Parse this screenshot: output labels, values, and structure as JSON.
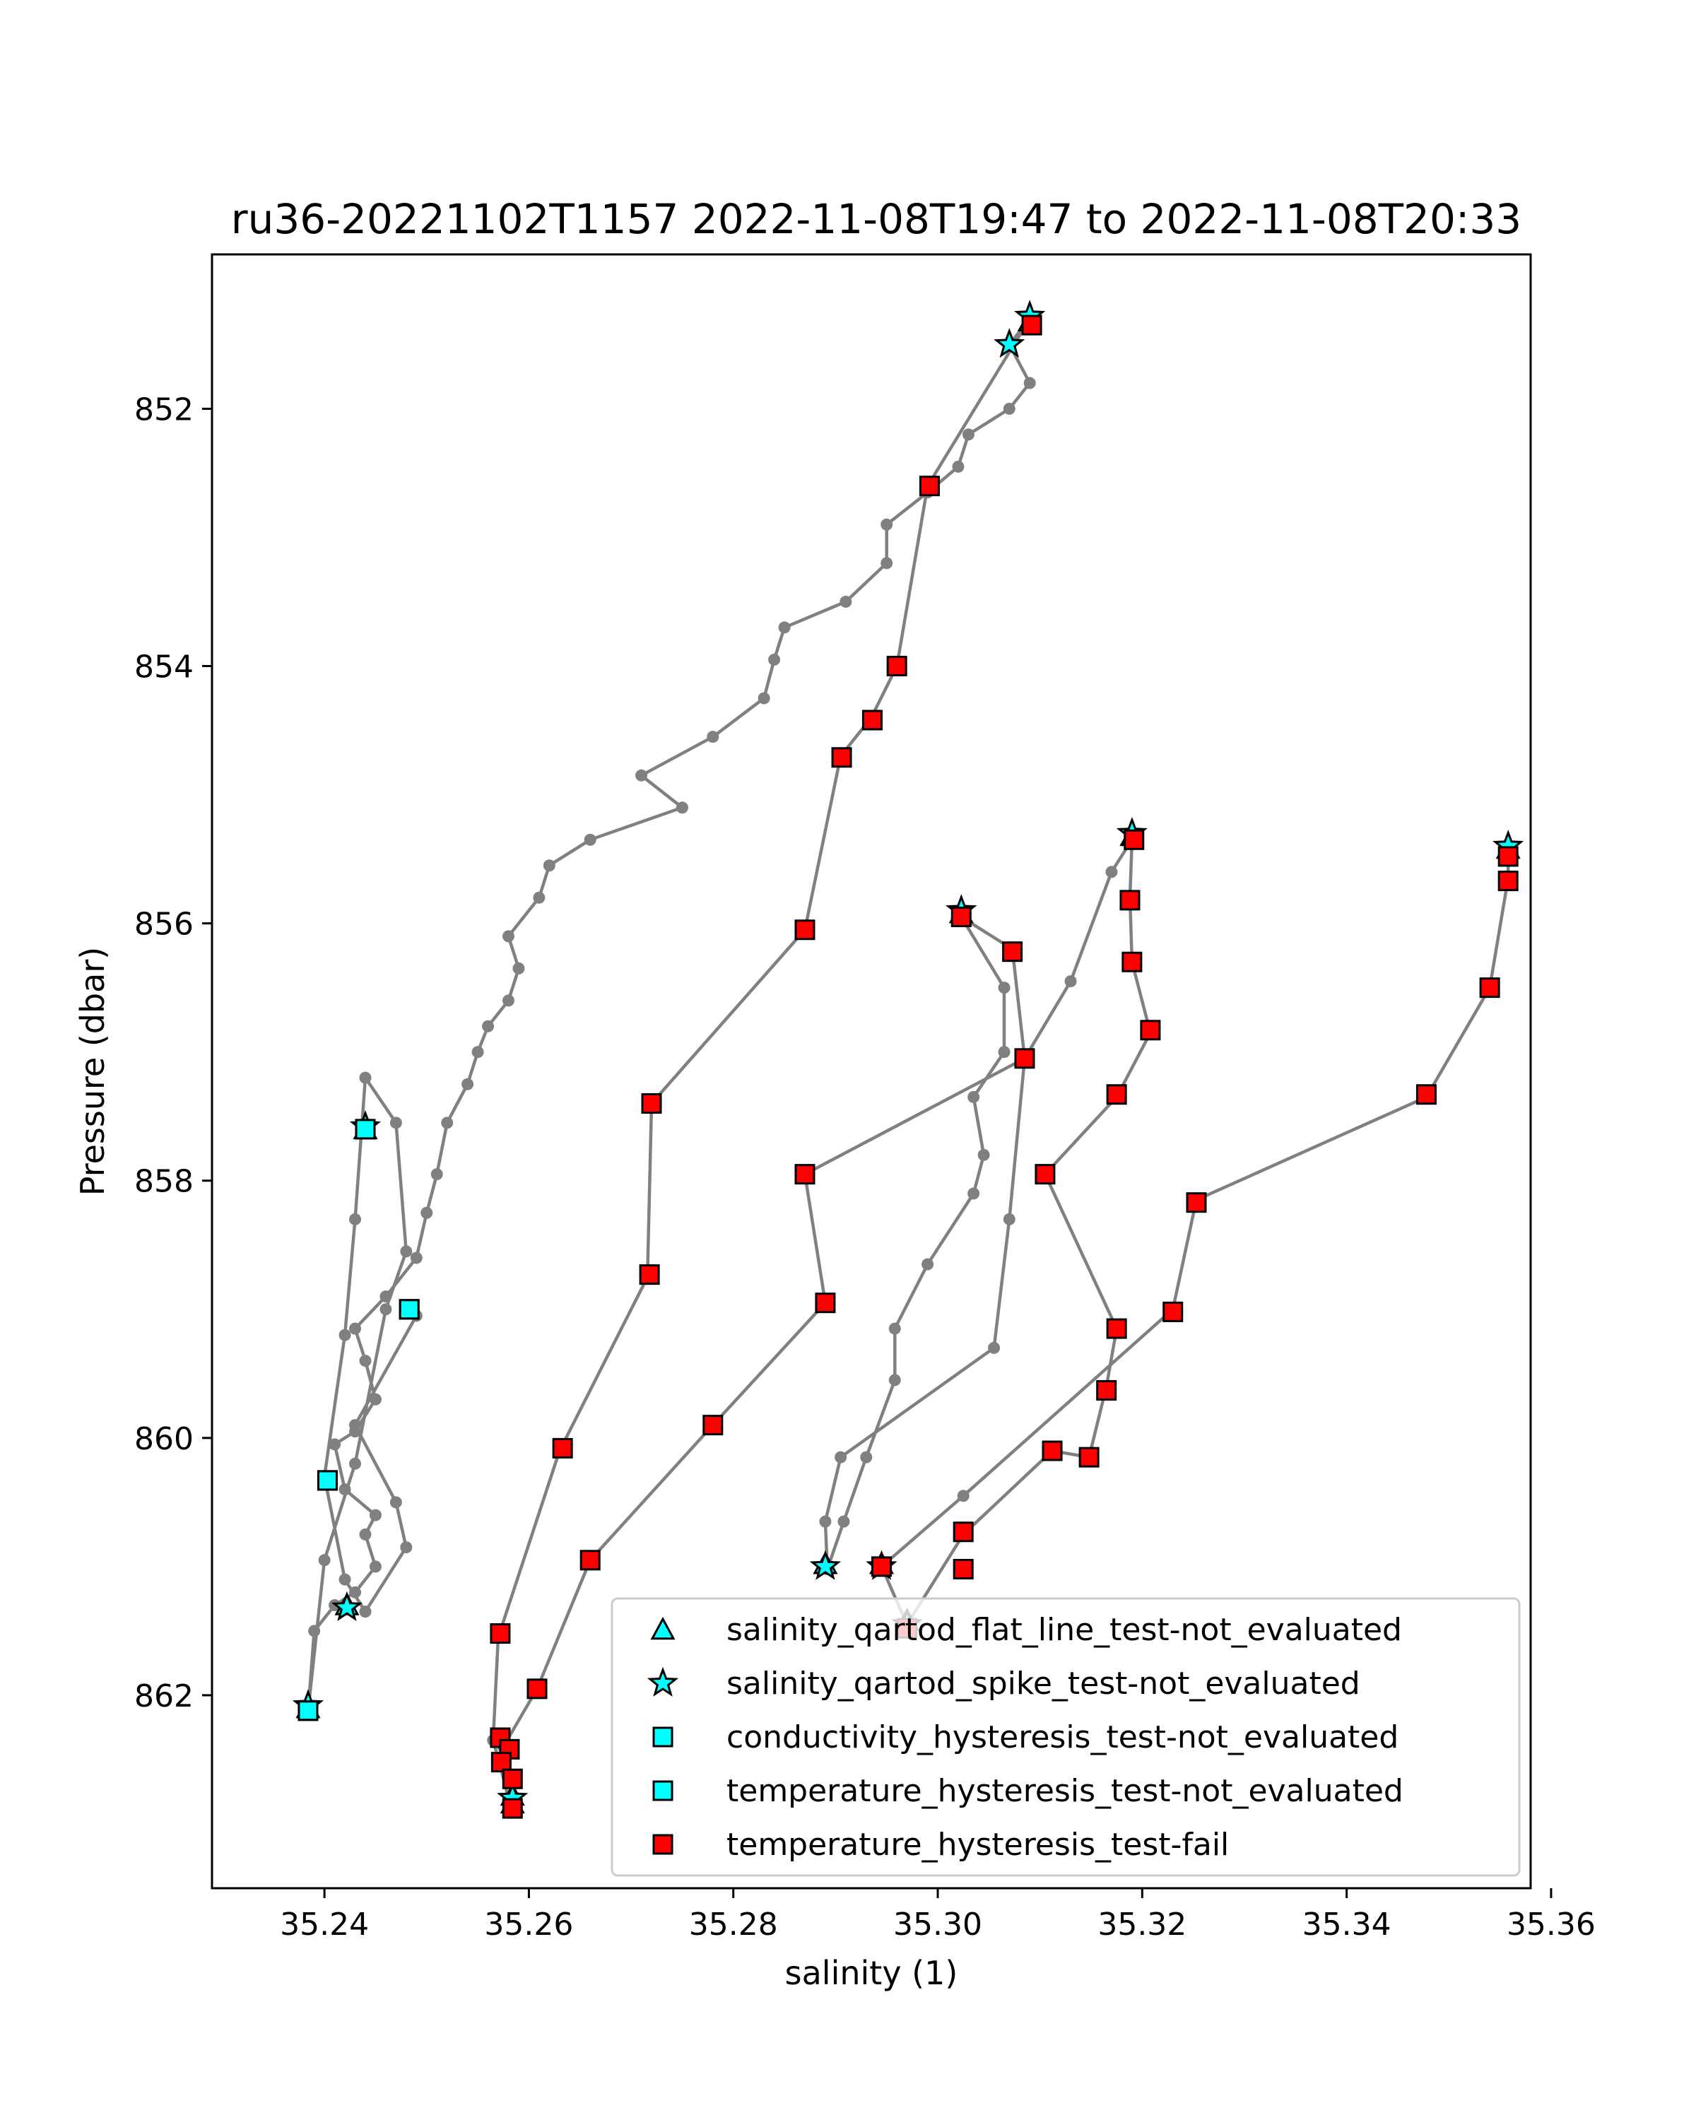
{
  "chart_data": {
    "type": "scatter",
    "title": "ru36-20221102T1157 2022-11-08T19:47 to 2022-11-08T20:33",
    "xlabel": "salinity (1)",
    "ylabel": "Pressure (dbar)",
    "xlim": [
      35.229,
      35.358
    ],
    "ylim": [
      863.5,
      850.8
    ],
    "y_inverted": true,
    "xticks": [
      35.24,
      35.26,
      35.28,
      35.3,
      35.32,
      35.34,
      35.36
    ],
    "xtick_labels": [
      "35.24",
      "35.26",
      "35.28",
      "35.30",
      "35.32",
      "35.34",
      "35.36"
    ],
    "yticks": [
      852,
      854,
      856,
      858,
      860,
      862
    ],
    "ytick_labels": [
      "852",
      "854",
      "856",
      "858",
      "860",
      "862"
    ],
    "grid": false,
    "legend_position": "lower-right",
    "colors": {
      "profile_line": "#808080",
      "not_evaluated": "#00ffff",
      "fail": "#ff0000",
      "marker_edge": "#000000"
    },
    "profiles": [
      {
        "points": [
          [
            35.309,
            851.3
          ],
          [
            35.307,
            851.5
          ],
          [
            35.309,
            851.8
          ],
          [
            35.307,
            852.0
          ],
          [
            35.303,
            852.2
          ],
          [
            35.302,
            852.45
          ],
          [
            35.299,
            852.65
          ],
          [
            35.295,
            852.9
          ],
          [
            35.295,
            853.2
          ],
          [
            35.291,
            853.5
          ],
          [
            35.285,
            853.7
          ],
          [
            35.284,
            853.95
          ],
          [
            35.283,
            854.25
          ],
          [
            35.278,
            854.55
          ],
          [
            35.271,
            854.85
          ],
          [
            35.275,
            855.1
          ],
          [
            35.266,
            855.35
          ],
          [
            35.262,
            855.55
          ],
          [
            35.261,
            855.8
          ],
          [
            35.258,
            856.1
          ],
          [
            35.259,
            856.35
          ],
          [
            35.258,
            856.6
          ],
          [
            35.256,
            856.8
          ],
          [
            35.255,
            857.0
          ],
          [
            35.254,
            857.25
          ],
          [
            35.252,
            857.55
          ],
          [
            35.251,
            857.95
          ],
          [
            35.25,
            858.25
          ],
          [
            35.249,
            858.6
          ],
          [
            35.246,
            858.9
          ],
          [
            35.243,
            859.15
          ],
          [
            35.244,
            859.4
          ],
          [
            35.245,
            859.7
          ],
          [
            35.243,
            859.95
          ],
          [
            35.241,
            860.05
          ],
          [
            35.242,
            860.4
          ],
          [
            35.245,
            860.6
          ],
          [
            35.244,
            860.75
          ],
          [
            35.245,
            861.0
          ],
          [
            35.243,
            861.2
          ],
          [
            35.241,
            861.3
          ],
          [
            35.239,
            861.5
          ],
          [
            35.2384,
            862.12
          ]
        ]
      },
      {
        "points": [
          [
            35.2384,
            862.12
          ],
          [
            35.24,
            860.95
          ],
          [
            35.243,
            860.2
          ],
          [
            35.246,
            859.0
          ],
          [
            35.248,
            858.55
          ],
          [
            35.247,
            857.55
          ],
          [
            35.244,
            857.2
          ],
          [
            35.243,
            858.3
          ],
          [
            35.242,
            859.2
          ],
          [
            35.24,
            860.3
          ],
          [
            35.242,
            861.1
          ],
          [
            35.244,
            861.35
          ],
          [
            35.248,
            860.85
          ],
          [
            35.247,
            860.5
          ],
          [
            35.243,
            859.9
          ],
          [
            35.249,
            859.05
          ]
        ]
      },
      {
        "points": [
          [
            35.309,
            851.3
          ],
          [
            35.299,
            852.6
          ],
          [
            35.296,
            854.0
          ],
          [
            35.2935,
            854.4
          ],
          [
            35.2905,
            854.7
          ],
          [
            35.287,
            856.05
          ],
          [
            35.272,
            857.4
          ],
          [
            35.2716,
            858.75
          ],
          [
            35.263,
            860.1
          ],
          [
            35.257,
            861.55
          ],
          [
            35.2565,
            862.35
          ],
          [
            35.2572,
            862.55
          ],
          [
            35.258,
            862.8
          ],
          [
            35.2583,
            862.88
          ],
          [
            35.2585,
            862.82
          ],
          [
            35.258,
            862.65
          ],
          [
            35.2575,
            862.4
          ],
          [
            35.2608,
            861.95
          ],
          [
            35.266,
            860.95
          ],
          [
            35.278,
            859.9
          ],
          [
            35.289,
            858.95
          ],
          [
            35.287,
            857.95
          ],
          [
            35.3085,
            857.05
          ],
          [
            35.313,
            856.45
          ],
          [
            35.317,
            855.6
          ],
          [
            35.319,
            855.35
          ],
          [
            35.3188,
            855.8
          ],
          [
            35.319,
            856.3
          ],
          [
            35.3208,
            856.85
          ],
          [
            35.3175,
            857.35
          ],
          [
            35.3105,
            857.95
          ],
          [
            35.3175,
            859.15
          ],
          [
            35.3165,
            859.6
          ],
          [
            35.3148,
            860.15
          ],
          [
            35.3112,
            860.1
          ],
          [
            35.3025,
            860.75
          ],
          [
            35.297,
            861.45
          ],
          [
            35.2945,
            861.0
          ],
          [
            35.3025,
            860.45
          ],
          [
            35.323,
            859.0
          ],
          [
            35.3253,
            858.15
          ],
          [
            35.3478,
            857.35
          ],
          [
            35.354,
            856.5
          ],
          [
            35.3558,
            855.65
          ],
          [
            35.3558,
            855.45
          ]
        ]
      },
      {
        "points": [
          [
            35.3023,
            855.95
          ],
          [
            35.3073,
            856.2
          ],
          [
            35.3085,
            857.05
          ],
          [
            35.307,
            858.3
          ],
          [
            35.3055,
            859.3
          ],
          [
            35.2905,
            860.15
          ],
          [
            35.289,
            860.65
          ],
          [
            35.2892,
            861.02
          ],
          [
            35.2908,
            860.65
          ],
          [
            35.293,
            860.15
          ],
          [
            35.2958,
            859.55
          ],
          [
            35.2958,
            859.15
          ],
          [
            35.299,
            858.65
          ],
          [
            35.3035,
            858.1
          ],
          [
            35.3045,
            857.8
          ],
          [
            35.3035,
            857.35
          ],
          [
            35.3065,
            857.0
          ],
          [
            35.3065,
            856.5
          ],
          [
            35.3023,
            855.95
          ]
        ]
      }
    ],
    "series": [
      {
        "name": "salinity_qartod_flat_line_test-not_evaluated",
        "marker": "triangle",
        "color": "#00ffff",
        "points": [
          [
            35.309,
            851.32
          ],
          [
            35.319,
            855.32
          ],
          [
            35.3023,
            855.92
          ],
          [
            35.3558,
            855.42
          ],
          [
            35.244,
            857.6
          ],
          [
            35.2384,
            862.1
          ],
          [
            35.2422,
            861.3
          ],
          [
            35.2584,
            862.84
          ],
          [
            35.2584,
            862.78
          ],
          [
            35.289,
            860.98
          ],
          [
            35.2945,
            860.98
          ],
          [
            35.297,
            861.42
          ]
        ]
      },
      {
        "name": "salinity_qartod_spike_test-not_evaluated",
        "marker": "star",
        "color": "#00ffff",
        "points": [
          [
            35.309,
            851.28
          ],
          [
            35.307,
            851.5
          ],
          [
            35.319,
            855.3
          ],
          [
            35.3023,
            855.9
          ],
          [
            35.3558,
            855.4
          ],
          [
            35.244,
            857.58
          ],
          [
            35.2422,
            861.32
          ],
          [
            35.2384,
            862.08
          ],
          [
            35.2584,
            862.8
          ],
          [
            35.289,
            861.0
          ],
          [
            35.2945,
            861.0
          ],
          [
            35.297,
            861.45
          ]
        ]
      },
      {
        "name": "conductivity_hysteresis_test-not_evaluated",
        "marker": "square",
        "color": "#00ffff",
        "points": [
          [
            35.244,
            857.6
          ],
          [
            35.2483,
            859.0
          ],
          [
            35.2403,
            860.33
          ],
          [
            35.2384,
            862.12
          ]
        ]
      },
      {
        "name": "temperature_hysteresis_test-not_evaluated",
        "marker": "square",
        "color": "#00ffff",
        "points": [
          [
            35.244,
            857.6
          ],
          [
            35.2483,
            859.0
          ],
          [
            35.2403,
            860.33
          ],
          [
            35.2384,
            862.12
          ]
        ]
      },
      {
        "name": "temperature_hysteresis_test-fail",
        "marker": "square",
        "color": "#ff0000",
        "points": [
          [
            35.3092,
            851.35
          ],
          [
            35.2992,
            852.6
          ],
          [
            35.296,
            854.0
          ],
          [
            35.2936,
            854.42
          ],
          [
            35.2906,
            854.71
          ],
          [
            35.287,
            856.05
          ],
          [
            35.272,
            857.4
          ],
          [
            35.2718,
            858.73
          ],
          [
            35.2633,
            860.08
          ],
          [
            35.266,
            860.95
          ],
          [
            35.278,
            859.9
          ],
          [
            35.289,
            858.95
          ],
          [
            35.287,
            857.95
          ],
          [
            35.3023,
            855.95
          ],
          [
            35.3073,
            856.22
          ],
          [
            35.3085,
            857.05
          ],
          [
            35.3192,
            855.35
          ],
          [
            35.3188,
            855.82
          ],
          [
            35.319,
            856.3
          ],
          [
            35.3208,
            856.83
          ],
          [
            35.3175,
            857.33
          ],
          [
            35.3105,
            857.95
          ],
          [
            35.3175,
            859.15
          ],
          [
            35.3165,
            859.63
          ],
          [
            35.3148,
            860.15
          ],
          [
            35.3112,
            860.1
          ],
          [
            35.3025,
            860.73
          ],
          [
            35.3025,
            861.02
          ],
          [
            35.2945,
            861.0
          ],
          [
            35.297,
            861.48
          ],
          [
            35.323,
            859.02
          ],
          [
            35.3253,
            858.17
          ],
          [
            35.3478,
            857.33
          ],
          [
            35.354,
            856.5
          ],
          [
            35.3558,
            855.48
          ],
          [
            35.3558,
            855.67
          ],
          [
            35.2572,
            861.52
          ],
          [
            35.2608,
            861.95
          ],
          [
            35.2572,
            862.33
          ],
          [
            35.2581,
            862.42
          ],
          [
            35.2573,
            862.52
          ],
          [
            35.2584,
            862.65
          ],
          [
            35.2584,
            862.88
          ]
        ]
      }
    ]
  }
}
